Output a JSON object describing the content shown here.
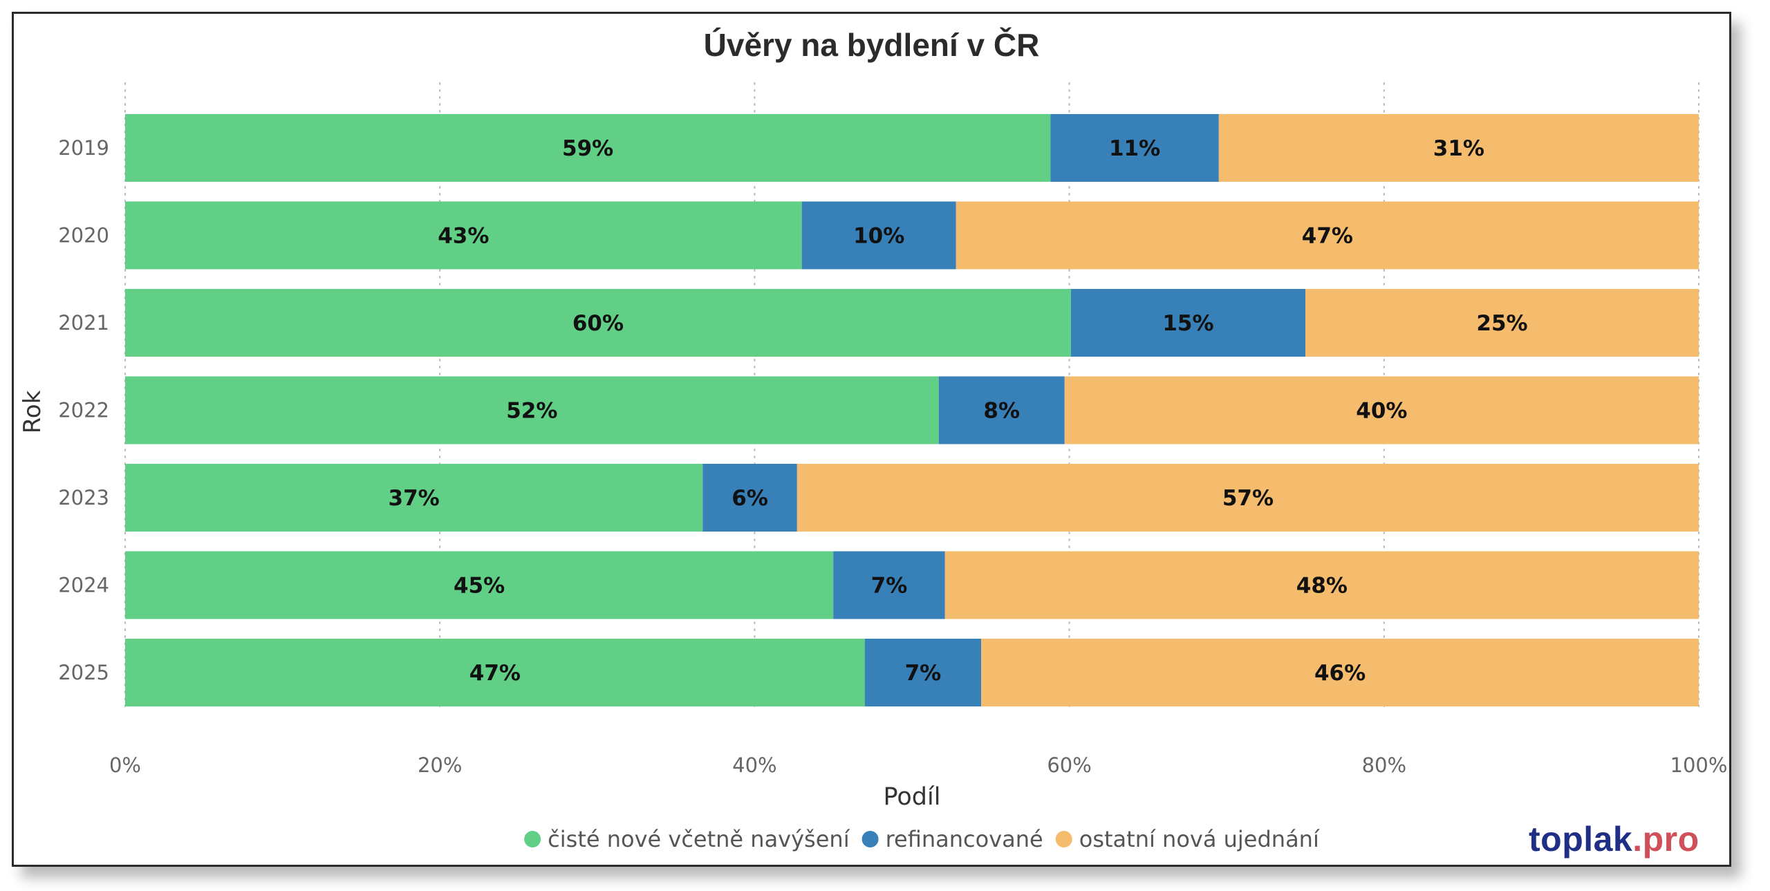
{
  "chart_data": {
    "type": "bar",
    "orientation": "horizontal",
    "stacked": "100%",
    "title": "Úvěry na bydlení v ČR",
    "xlabel": "Podíl",
    "ylabel": "Rok",
    "xlim": [
      0,
      100
    ],
    "x_ticks": [
      "0%",
      "20%",
      "40%",
      "60%",
      "80%",
      "100%"
    ],
    "grid": "vertical dotted",
    "legend_position": "bottom",
    "categories": [
      "2019",
      "2020",
      "2021",
      "2022",
      "2023",
      "2024",
      "2025"
    ],
    "series": [
      {
        "name": "čisté nové včetně navýšení",
        "color": "#62cf87",
        "values": [
          58.8,
          43.0,
          60.1,
          51.7,
          36.7,
          45.0,
          47.0
        ],
        "labels": [
          "59%",
          "43%",
          "60%",
          "52%",
          "37%",
          "45%",
          "47%"
        ]
      },
      {
        "name": "refinancované",
        "color": "#3880b8",
        "values": [
          10.7,
          9.8,
          14.9,
          8.0,
          6.0,
          7.1,
          7.4
        ],
        "labels": [
          "11%",
          "10%",
          "15%",
          "8%",
          "6%",
          "7%",
          "7%"
        ]
      },
      {
        "name": "ostatní nová ujednání",
        "color": "#f4bc6c",
        "values": [
          30.5,
          47.2,
          25.0,
          40.3,
          57.3,
          47.9,
          45.6
        ],
        "labels": [
          "31%",
          "47%",
          "25%",
          "40%",
          "57%",
          "48%",
          "46%"
        ]
      }
    ]
  },
  "brand": {
    "part1": "toplak",
    "part2": ".pro"
  }
}
